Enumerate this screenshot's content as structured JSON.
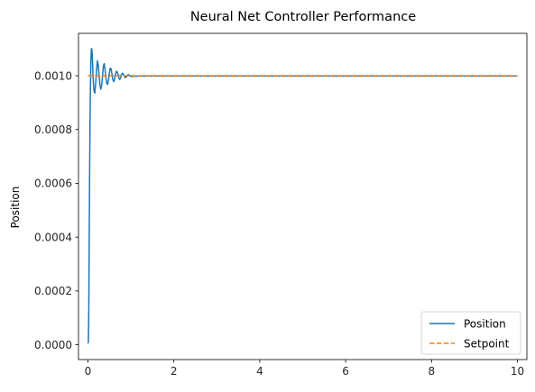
{
  "chart_data": {
    "type": "line",
    "title": "Neural Net Controller Performance",
    "xlabel": "",
    "ylabel": "Position",
    "xlim": [
      -0.22,
      10.22
    ],
    "ylim": [
      -5.5e-05,
      0.0011575
    ],
    "xticks": [
      0,
      2,
      4,
      6,
      8,
      10
    ],
    "xtick_labels": [
      "0",
      "2",
      "4",
      "6",
      "8",
      "10"
    ],
    "yticks": [
      0,
      0.0002,
      0.0004,
      0.0006,
      0.0008,
      0.001
    ],
    "ytick_labels": [
      "0.0000",
      "0.0002",
      "0.0004",
      "0.0006",
      "0.0008",
      "0.0010"
    ],
    "grid": false,
    "legend_position": "lower-right",
    "series": [
      {
        "name": "Position",
        "style": "solid",
        "color": "#1f77b4",
        "x": [
          0,
          0.01,
          0.02,
          0.03,
          0.04,
          0.05,
          0.06,
          0.07,
          0.08,
          0.09,
          0.1,
          0.11,
          0.12,
          0.14,
          0.16,
          0.18,
          0.2,
          0.22,
          0.24,
          0.26,
          0.28,
          0.3,
          0.32,
          0.34,
          0.36,
          0.38,
          0.4,
          0.42,
          0.44,
          0.46,
          0.48,
          0.5,
          0.52,
          0.54,
          0.56,
          0.58,
          0.6,
          0.62,
          0.64,
          0.66,
          0.68,
          0.7,
          0.72,
          0.74,
          0.76,
          0.78,
          0.8,
          0.82,
          0.84,
          0.86,
          0.88,
          0.9,
          0.92,
          0.94,
          0.96,
          0.98,
          1.0,
          1.1,
          1.2,
          1.4,
          1.6,
          2,
          3,
          4,
          5,
          6,
          7,
          8,
          9,
          10
        ],
        "y": [
          5e-06,
          1e-05,
          0.00013,
          0.0004,
          0.00066,
          0.00085,
          0.00098,
          0.00106,
          0.0011,
          0.0011,
          0.00108,
          0.00104,
          0.00099,
          0.000945,
          0.000935,
          0.00097,
          0.00102,
          0.001055,
          0.00104,
          0.001,
          0.000965,
          0.00095,
          0.000965,
          0.001,
          0.001035,
          0.001045,
          0.00102,
          0.00099,
          0.00097,
          0.000968,
          0.000985,
          0.001012,
          0.001028,
          0.001025,
          0.001005,
          0.000985,
          0.000978,
          0.000985,
          0.001003,
          0.001016,
          0.001015,
          0.001004,
          0.000991,
          0.000986,
          0.000992,
          0.001003,
          0.001009,
          0.001007,
          0.001,
          0.000994,
          0.000993,
          0.000997,
          0.001002,
          0.001004,
          0.001002,
          0.000999,
          0.000997,
          0.000998,
          0.000999,
          0.000999,
          0.000999,
          0.000999,
          0.000999,
          0.000999,
          0.000999,
          0.000999,
          0.000999,
          0.000999,
          0.000999,
          0.000999
        ]
      },
      {
        "name": "Setpoint",
        "style": "dashed",
        "color": "#ff7f0e",
        "x": [
          0,
          10
        ],
        "y": [
          0.001,
          0.001
        ]
      }
    ]
  }
}
